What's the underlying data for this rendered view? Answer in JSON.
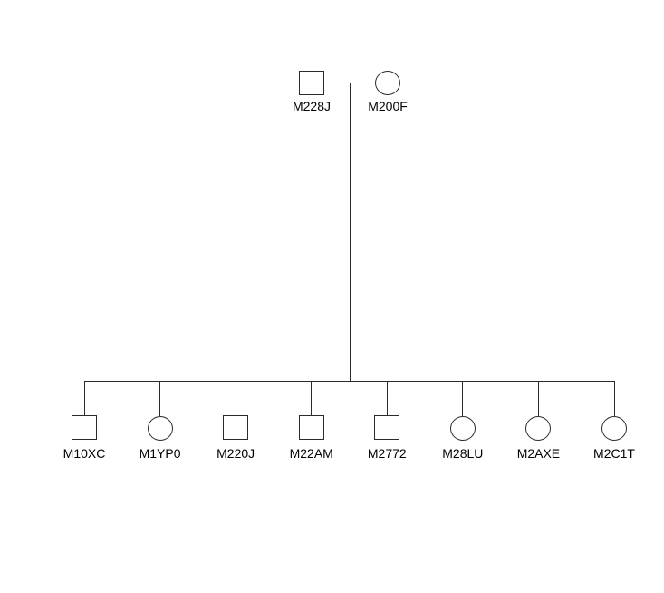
{
  "pedigree": {
    "parents": [
      {
        "id": "M228J",
        "shape": "square"
      },
      {
        "id": "M200F",
        "shape": "circle"
      }
    ],
    "children": [
      {
        "id": "M10XC",
        "shape": "square"
      },
      {
        "id": "M1YP0",
        "shape": "circle"
      },
      {
        "id": "M220J",
        "shape": "square"
      },
      {
        "id": "M22AM",
        "shape": "square"
      },
      {
        "id": "M2772",
        "shape": "square"
      },
      {
        "id": "M28LU",
        "shape": "circle"
      },
      {
        "id": "M2AXE",
        "shape": "circle"
      },
      {
        "id": "M2C1T",
        "shape": "circle"
      }
    ],
    "colors": {
      "line": "#2b2b2b",
      "text": "#000000",
      "background": "#ffffff"
    }
  }
}
